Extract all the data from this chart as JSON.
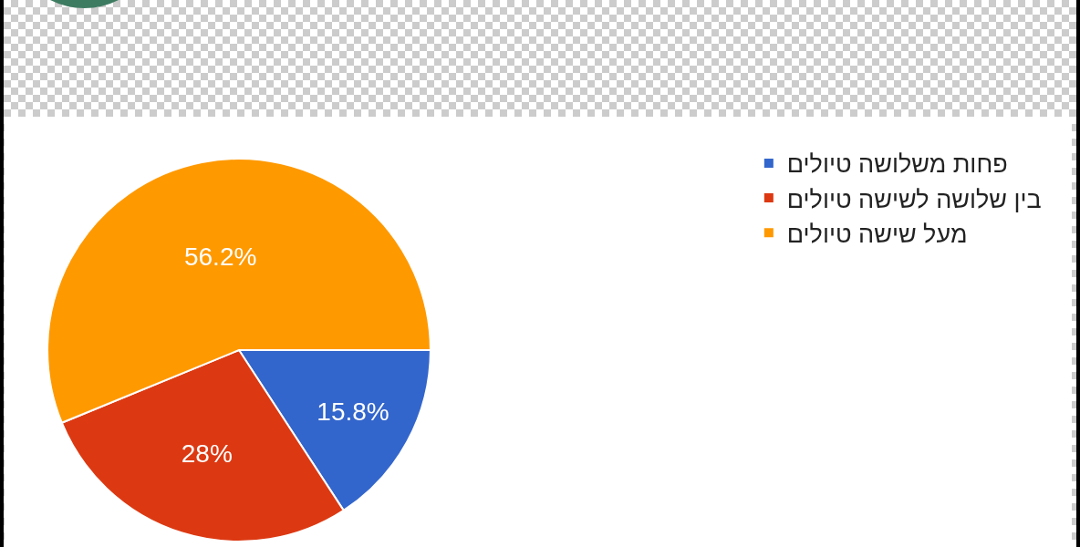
{
  "chart_data": {
    "type": "pie",
    "categories": [
      "פחות משלושה טיולים",
      "בין שלושה לשישה טיולים",
      "מעל שישה טיולים"
    ],
    "values": [
      15.8,
      28,
      56.2
    ],
    "colors": [
      "#3366cc",
      "#dc3912",
      "#ff9900"
    ],
    "value_labels": [
      "15.8%",
      "28%",
      "56.2%"
    ],
    "legend": "top right"
  }
}
